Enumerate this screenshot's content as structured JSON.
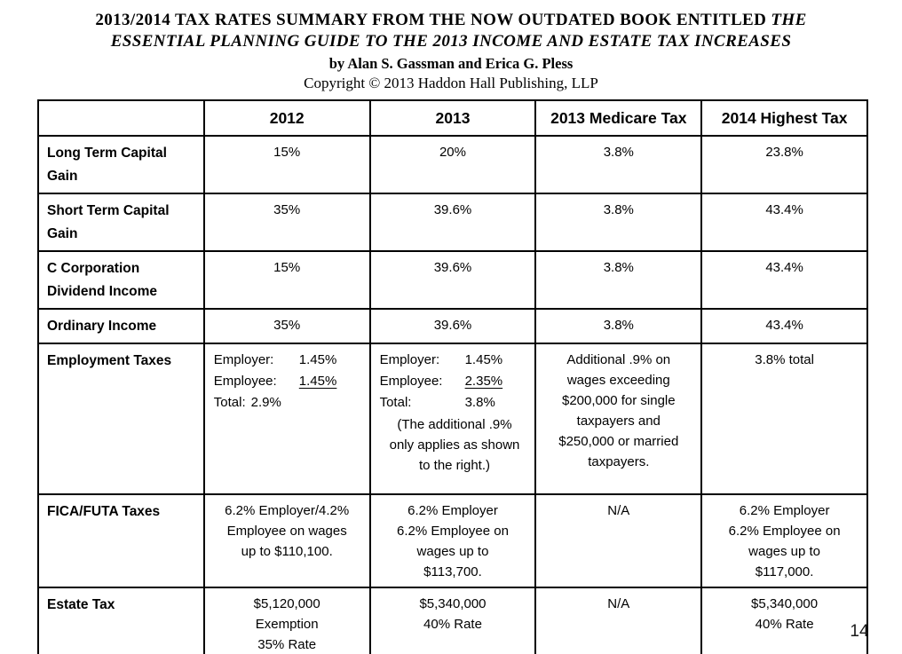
{
  "title": {
    "line1_normal": "2013/2014 TAX RATES SUMMARY FROM THE NOW OUTDATED BOOK ENTITLED ",
    "line1_italic": "THE",
    "line2": "ESSENTIAL PLANNING GUIDE TO THE 2013 INCOME AND ESTATE TAX INCREASES",
    "byline": "by Alan S. Gassman and Erica G. Pless",
    "copyright": "Copyright © 2013 Haddon Hall Publishing, LLP"
  },
  "page_number": "14",
  "table": {
    "headers": [
      "",
      "2012",
      "2013",
      "2013 Medicare Tax",
      "2014 Highest Tax"
    ],
    "rows": [
      {
        "label": "Long Term Capital\nGain",
        "cells": [
          {
            "text": "15%"
          },
          {
            "text": "20%"
          },
          {
            "text": "3.8%"
          },
          {
            "text": "23.8%"
          }
        ]
      },
      {
        "label": "Short Term Capital\nGain",
        "cells": [
          {
            "text": "35%"
          },
          {
            "text": "39.6%"
          },
          {
            "text": "3.8%"
          },
          {
            "text": "43.4%"
          }
        ]
      },
      {
        "label": "C Corporation\nDividend Income",
        "cells": [
          {
            "text": "15%"
          },
          {
            "text": "39.6%"
          },
          {
            "text": "3.8%"
          },
          {
            "text": "43.4%"
          }
        ]
      },
      {
        "label": "Ordinary Income",
        "cells": [
          {
            "text": "35%"
          },
          {
            "text": "39.6%"
          },
          {
            "text": "3.8%"
          },
          {
            "text": "43.4%"
          }
        ]
      },
      {
        "label": "Employment Taxes",
        "cells": [
          {
            "lines": [
              {
                "label": "Employer:",
                "value": "1.45%",
                "underline": false,
                "tabbed": true
              },
              {
                "label": "Employee:",
                "value": "1.45%",
                "underline": true,
                "tabbed": true
              },
              {
                "label": "Total:",
                "value": "2.9%",
                "underline": false,
                "tabbed": false
              }
            ]
          },
          {
            "lines": [
              {
                "label": "Employer:",
                "value": "1.45%",
                "underline": false,
                "tabbed": true
              },
              {
                "label": "Employee:",
                "value": "2.35%",
                "underline": true,
                "tabbed": true
              },
              {
                "label": "Total:",
                "value": "3.8%",
                "underline": false,
                "tabbed": true
              }
            ],
            "note": "(The additional .9%\nonly applies as shown\nto the right.)"
          },
          {
            "text": "Additional .9% on\nwages exceeding\n$200,000 for single\ntaxpayers and\n$250,000 or married\ntaxpayers."
          },
          {
            "text": "3.8% total"
          }
        ]
      },
      {
        "label": "FICA/FUTA Taxes",
        "cells": [
          {
            "text": "6.2% Employer/4.2%\nEmployee on wages\nup to $110,100."
          },
          {
            "text": "6.2% Employer\n6.2% Employee on\nwages up to\n$113,700."
          },
          {
            "text": "N/A"
          },
          {
            "text": "6.2% Employer\n6.2% Employee on\nwages up to\n$117,000."
          }
        ]
      },
      {
        "label": "Estate Tax",
        "cells": [
          {
            "text": "$5,120,000\nExemption\n35% Rate"
          },
          {
            "text": "$5,340,000\n40% Rate"
          },
          {
            "text": "N/A"
          },
          {
            "text": "$5,340,000\n40% Rate"
          }
        ]
      }
    ]
  }
}
